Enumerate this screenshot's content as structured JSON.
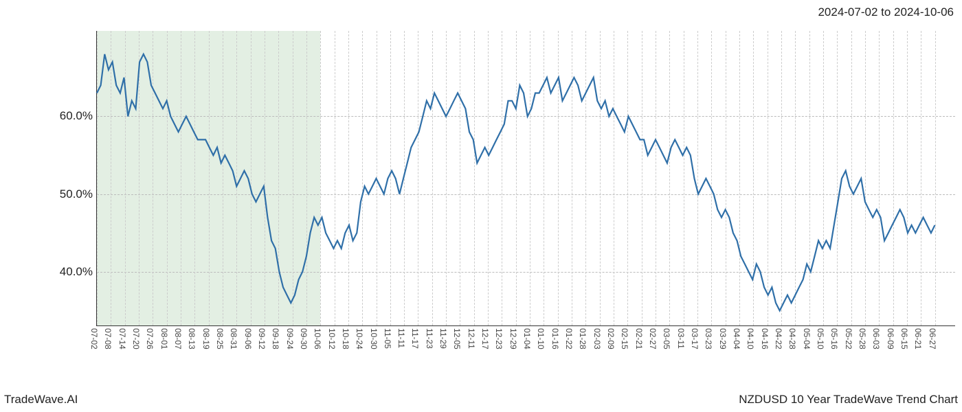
{
  "header": {
    "date_range": "2024-07-02 to 2024-10-06"
  },
  "footer": {
    "left": "TradeWave.AI",
    "right": "NZDUSD 10 Year TradeWave Trend Chart"
  },
  "chart": {
    "type": "line",
    "background_color": "#ffffff",
    "grid_color": "#cccccc",
    "axis_color": "#333333",
    "line_color": "#2f6fa8",
    "highlight_fill": "#d9e9d9",
    "highlight_start_index": 0,
    "highlight_end_index": 16,
    "y_axis": {
      "min": 33,
      "max": 71,
      "ticks": [
        40,
        50,
        60
      ],
      "tick_labels": [
        "40.0%",
        "50.0%",
        "60.0%"
      ],
      "label_fontsize": 17
    },
    "x_axis": {
      "labels": [
        "07-02",
        "07-08",
        "07-14",
        "07-20",
        "07-26",
        "08-01",
        "08-07",
        "08-13",
        "08-19",
        "08-25",
        "08-31",
        "09-06",
        "09-12",
        "09-18",
        "09-24",
        "09-30",
        "10-06",
        "10-12",
        "10-18",
        "10-24",
        "10-30",
        "11-05",
        "11-11",
        "11-17",
        "11-23",
        "11-29",
        "12-05",
        "12-11",
        "12-17",
        "12-23",
        "12-29",
        "01-04",
        "01-10",
        "01-16",
        "01-22",
        "01-28",
        "02-03",
        "02-09",
        "02-15",
        "02-21",
        "02-27",
        "03-05",
        "03-11",
        "03-17",
        "03-23",
        "03-29",
        "04-04",
        "04-10",
        "04-16",
        "04-22",
        "04-28",
        "05-04",
        "05-10",
        "05-16",
        "05-22",
        "05-28",
        "06-03",
        "06-09",
        "06-15",
        "06-21",
        "06-27"
      ],
      "label_fontsize": 12
    },
    "series": {
      "values": [
        63,
        64,
        68,
        66,
        67,
        64,
        63,
        65,
        60,
        62,
        61,
        67,
        68,
        67,
        64,
        63,
        62,
        61,
        62,
        60,
        59,
        58,
        59,
        60,
        59,
        58,
        57,
        57,
        57,
        56,
        55,
        56,
        54,
        55,
        54,
        53,
        51,
        52,
        53,
        52,
        50,
        49,
        50,
        51,
        47,
        44,
        43,
        40,
        38,
        37,
        36,
        37,
        39,
        40,
        42,
        45,
        47,
        46,
        47,
        45,
        44,
        43,
        44,
        43,
        45,
        46,
        44,
        45,
        49,
        51,
        50,
        51,
        52,
        51,
        50,
        52,
        53,
        52,
        50,
        52,
        54,
        56,
        57,
        58,
        60,
        62,
        61,
        63,
        62,
        61,
        60,
        61,
        62,
        63,
        62,
        61,
        58,
        57,
        54,
        55,
        56,
        55,
        56,
        57,
        58,
        59,
        62,
        62,
        61,
        64,
        63,
        60,
        61,
        63,
        63,
        64,
        65,
        63,
        64,
        65,
        62,
        63,
        64,
        65,
        64,
        62,
        63,
        64,
        65,
        62,
        61,
        62,
        60,
        61,
        60,
        59,
        58,
        60,
        59,
        58,
        57,
        57,
        55,
        56,
        57,
        56,
        55,
        54,
        56,
        57,
        56,
        55,
        56,
        55,
        52,
        50,
        51,
        52,
        51,
        50,
        48,
        47,
        48,
        47,
        45,
        44,
        42,
        41,
        40,
        39,
        41,
        40,
        38,
        37,
        38,
        36,
        35,
        36,
        37,
        36,
        37,
        38,
        39,
        41,
        40,
        42,
        44,
        43,
        44,
        43,
        46,
        49,
        52,
        53,
        51,
        50,
        51,
        52,
        49,
        48,
        47,
        48,
        47,
        44,
        45,
        46,
        47,
        48,
        47,
        45,
        46,
        45,
        46,
        47,
        46,
        45,
        46
      ]
    }
  }
}
